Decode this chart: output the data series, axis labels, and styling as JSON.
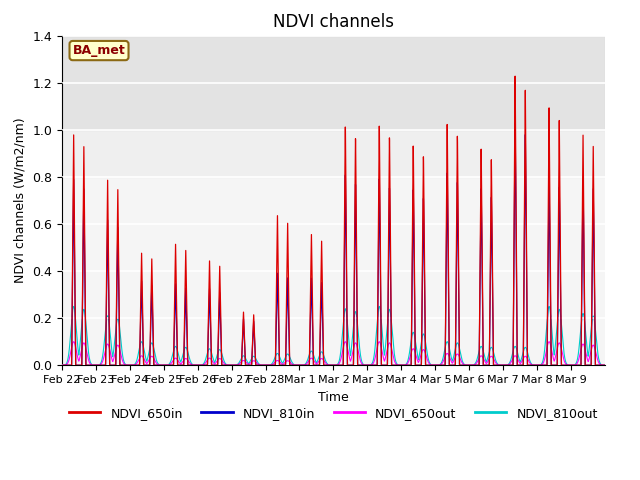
{
  "title": "NDVI channels",
  "xlabel": "Time",
  "ylabel": "NDVI channels (W/m2/nm)",
  "ylim": [
    0,
    1.4
  ],
  "annotation_text": "BA_met",
  "legend_entries": [
    "NDVI_650in",
    "NDVI_810in",
    "NDVI_650out",
    "NDVI_810out"
  ],
  "legend_colors": [
    "#dd0000",
    "#0000cc",
    "#ff00ff",
    "#00cccc"
  ],
  "xtick_labels": [
    "Feb 22",
    "Feb 23",
    "Feb 24",
    "Feb 25",
    "Feb 26",
    "Feb 27",
    "Feb 28",
    "Mar 1",
    "Mar 2",
    "Mar 3",
    "Mar 4",
    "Mar 5",
    "Mar 6",
    "Mar 7",
    "Mar 8",
    "Mar 9"
  ],
  "pulses": [
    {
      "day": 0,
      "r650in": 0.98,
      "r810in": 0.79,
      "r650out": 0.1,
      "r810out": 0.25
    },
    {
      "day": 1,
      "r650in": 0.79,
      "r810in": 0.62,
      "r650out": 0.09,
      "r810out": 0.21
    },
    {
      "day": 2,
      "r650in": 0.48,
      "r810in": 0.36,
      "r650out": 0.04,
      "r810out": 0.1
    },
    {
      "day": 3,
      "r650in": 0.52,
      "r810in": 0.35,
      "r650out": 0.03,
      "r810out": 0.08
    },
    {
      "day": 4,
      "r650in": 0.45,
      "r810in": 0.33,
      "r650out": 0.03,
      "r810out": 0.07
    },
    {
      "day": 5,
      "r650in": 0.23,
      "r810in": 0.2,
      "r650out": 0.02,
      "r810out": 0.04
    },
    {
      "day": 6,
      "r650in": 0.65,
      "r810in": 0.4,
      "r650out": 0.02,
      "r810out": 0.05
    },
    {
      "day": 7,
      "r650in": 0.57,
      "r810in": 0.38,
      "r650out": 0.03,
      "r810out": 0.06
    },
    {
      "day": 8,
      "r650in": 1.04,
      "r810in": 0.83,
      "r650out": 0.1,
      "r810out": 0.24
    },
    {
      "day": 9,
      "r650in": 1.04,
      "r810in": 0.81,
      "r650out": 0.1,
      "r810out": 0.25
    },
    {
      "day": 10,
      "r650in": 0.95,
      "r810in": 0.76,
      "r650out": 0.07,
      "r810out": 0.14
    },
    {
      "day": 11,
      "r650in": 1.04,
      "r810in": 0.83,
      "r650out": 0.05,
      "r810out": 0.1
    },
    {
      "day": 12,
      "r650in": 0.93,
      "r810in": 0.76,
      "r650out": 0.04,
      "r810out": 0.08
    },
    {
      "day": 13,
      "r650in": 1.24,
      "r810in": 1.04,
      "r650out": 0.04,
      "r810out": 0.08
    },
    {
      "day": 14,
      "r650in": 1.1,
      "r810in": 0.8,
      "r650out": 0.1,
      "r810out": 0.25
    },
    {
      "day": 15,
      "r650in": 0.98,
      "r810in": 0.79,
      "r650out": 0.09,
      "r810out": 0.22
    }
  ],
  "gray_band": [
    1.0,
    1.4
  ],
  "gray_band2": [
    0.8,
    1.0
  ],
  "facecolor": "#f8f8f8",
  "grid_color": "#e0e0e0"
}
